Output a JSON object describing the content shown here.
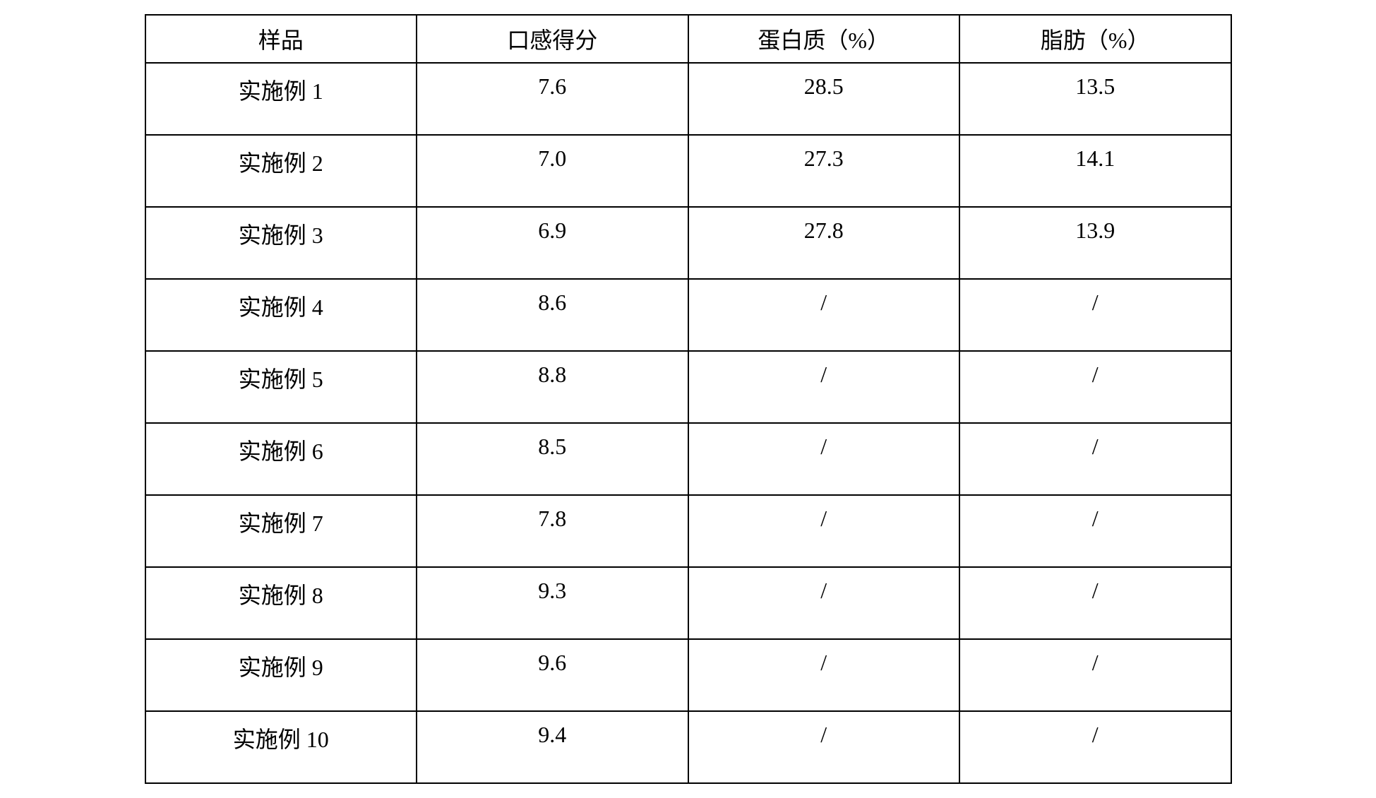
{
  "table": {
    "type": "table",
    "background_color": "#ffffff",
    "border_color": "#000000",
    "text_color": "#000000",
    "font_family": "SimSun",
    "header_fontsize": 32,
    "cell_fontsize": 32,
    "border_width": 2,
    "column_count": 4,
    "header_row_height": 68,
    "data_row_height": 102,
    "text_align": "center",
    "columns": [
      "样品",
      "口感得分",
      "蛋白质（%）",
      "脂肪（%）"
    ],
    "rows": [
      [
        "实施例 1",
        "7.6",
        "28.5",
        "13.5"
      ],
      [
        "实施例 2",
        "7.0",
        "27.3",
        "14.1"
      ],
      [
        "实施例 3",
        "6.9",
        "27.8",
        "13.9"
      ],
      [
        "实施例 4",
        "8.6",
        "/",
        "/"
      ],
      [
        "实施例 5",
        "8.8",
        "/",
        "/"
      ],
      [
        "实施例 6",
        "8.5",
        "/",
        "/"
      ],
      [
        "实施例 7",
        "7.8",
        "/",
        "/"
      ],
      [
        "实施例 8",
        "9.3",
        "/",
        "/"
      ],
      [
        "实施例 9",
        "9.6",
        "/",
        "/"
      ],
      [
        "实施例 10",
        "9.4",
        "/",
        "/"
      ]
    ]
  }
}
